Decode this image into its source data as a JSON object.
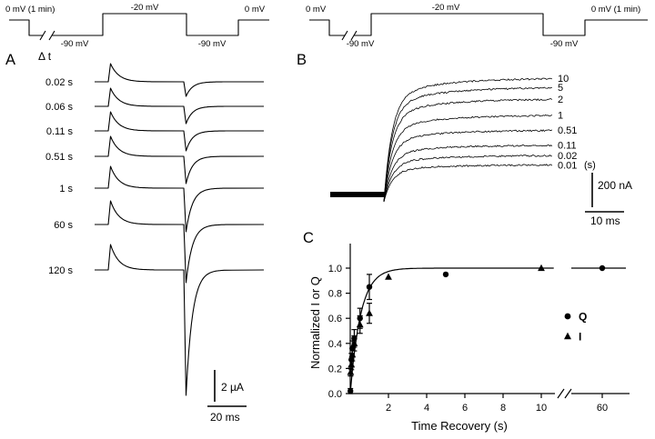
{
  "figure": {
    "background": "#ffffff",
    "ink": "#000000"
  },
  "protocol_a": {
    "pre_label": "0 mV (1 min)",
    "step_label": "-20 mV",
    "hold_label_1": "-90 mV",
    "hold_label_2": "-90 mV",
    "post_label": "0 mV"
  },
  "protocol_b": {
    "pre_label": "0 mV",
    "step_label": "-20 mV",
    "hold_label_1": "-90 mV",
    "hold_label_2": "-90 mV",
    "post_label": "0 mV (1 min)"
  },
  "panel_a": {
    "letter": "A",
    "delta_label": "Δ t",
    "rows": [
      {
        "label": "0.02 s",
        "on_rel": 1.0,
        "off_rel": 0.8
      },
      {
        "label": "0.06 s",
        "on_rel": 1.0,
        "off_rel": 0.95
      },
      {
        "label": "0.11 s",
        "on_rel": 1.05,
        "off_rel": 1.1
      },
      {
        "label": "0.51 s",
        "on_rel": 1.1,
        "off_rel": 1.5
      },
      {
        "label": "1 s",
        "on_rel": 1.2,
        "off_rel": 2.4
      },
      {
        "label": "60 s",
        "on_rel": 1.3,
        "off_rel": 3.2
      },
      {
        "label": "120 s",
        "on_rel": 1.4,
        "off_rel": 6.9
      }
    ],
    "scale_vertical": "2 µA",
    "scale_horizontal": "20 ms"
  },
  "panel_b": {
    "letter": "B",
    "trace_labels": [
      "10",
      "5",
      "2",
      "1",
      "0.51",
      "0.11",
      "0.02",
      "0.01"
    ],
    "unit_label": "(s)",
    "scale_vertical": "200 nA",
    "scale_horizontal": "10 ms"
  },
  "panel_c": {
    "letter": "C",
    "ylabel": "Normalized I  or  Q",
    "xlabel": "Time Recovery (s)",
    "legend": [
      {
        "label": "Q",
        "marker": "circle"
      },
      {
        "label": "I",
        "marker": "triangle"
      }
    ]
  },
  "chart_data": [
    {
      "panel": "A",
      "type": "line",
      "categories": [
        "0.02 s",
        "0.06 s",
        "0.11 s",
        "0.51 s",
        "1 s",
        "60 s",
        "120 s"
      ],
      "series": [
        {
          "name": "on_transient_rel_amplitude",
          "values": [
            1.0,
            1.0,
            1.05,
            1.1,
            1.2,
            1.3,
            1.4
          ]
        },
        {
          "name": "off_transient_rel_amplitude",
          "values": [
            0.8,
            0.95,
            1.1,
            1.5,
            2.4,
            3.2,
            6.9
          ]
        }
      ],
      "scale_bar_vertical": "2 µA",
      "scale_bar_horizontal": "20 ms"
    },
    {
      "panel": "B",
      "type": "line",
      "categories": [
        "10",
        "5",
        "2",
        "1",
        "0.51",
        "0.11",
        "0.02",
        "0.01"
      ],
      "category_unit": "(s)",
      "plateau_rel": [
        1.0,
        0.92,
        0.82,
        0.68,
        0.55,
        0.42,
        0.33,
        0.25
      ],
      "scale_bar_vertical": "200 nA",
      "scale_bar_horizontal": "10 ms"
    },
    {
      "panel": "C",
      "type": "scatter",
      "xlabel": "Time Recovery (s)",
      "ylabel": "Normalized I  or  Q",
      "xticks": [
        2,
        4,
        6,
        8,
        10,
        60
      ],
      "yticks": [
        0.0,
        0.2,
        0.4,
        0.6,
        0.8,
        1.0
      ],
      "ylim": [
        0,
        1.05
      ],
      "x_axis_break_between": [
        10.8,
        60
      ],
      "grid": false,
      "legend_position": "right-middle",
      "fit": {
        "model": "1-exp(-t/tau)",
        "tau_s": 0.55,
        "plateau": 1.0
      },
      "series": [
        {
          "name": "Q",
          "marker": "circle",
          "points": [
            [
              0.01,
              0.02
            ],
            [
              0.06,
              0.27
            ],
            [
              0.11,
              0.36
            ],
            [
              0.21,
              0.44
            ],
            [
              0.51,
              0.6
            ],
            [
              1,
              0.85
            ],
            [
              5,
              0.95
            ],
            [
              60,
              1.0
            ]
          ],
          "yerr": [
            0.02,
            0.05,
            0.06,
            0.07,
            0.08,
            0.1,
            0,
            0
          ]
        },
        {
          "name": "I",
          "marker": "triangle",
          "points": [
            [
              0.02,
              0.17
            ],
            [
              0.06,
              0.23
            ],
            [
              0.11,
              0.31
            ],
            [
              0.21,
              0.4
            ],
            [
              0.51,
              0.55
            ],
            [
              1,
              0.64
            ],
            [
              2,
              0.93
            ],
            [
              10,
              1.0
            ]
          ],
          "yerr": [
            0.03,
            0.04,
            0.05,
            0.06,
            0.07,
            0.08,
            0,
            0
          ]
        }
      ]
    }
  ]
}
